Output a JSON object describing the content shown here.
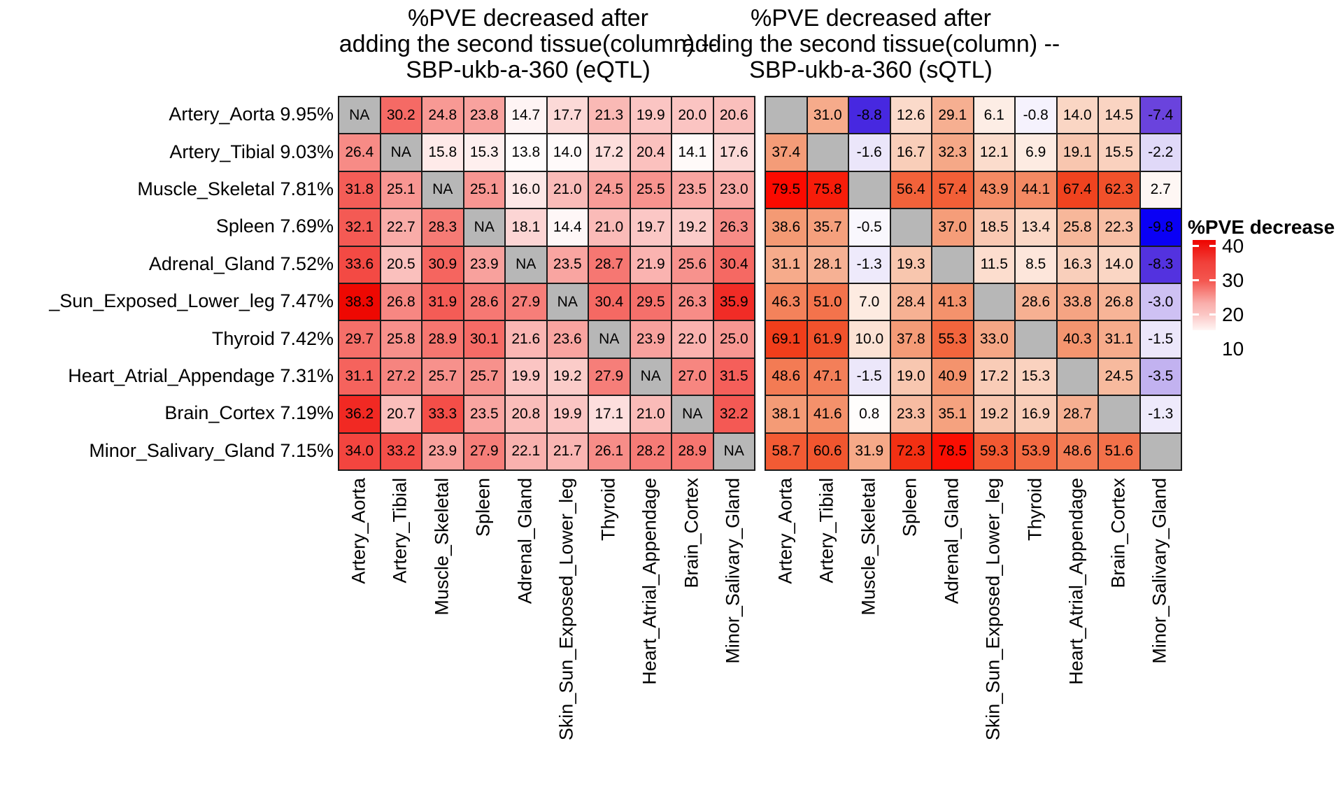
{
  "figure": {
    "legend": {
      "title": "%PVE decrease",
      "ticks": [
        "40",
        "30",
        "20",
        "10"
      ]
    }
  },
  "colors": {
    "na_fill": "#b7b7b7",
    "cell_border": "#1a1a1a",
    "cell_text": "#000000",
    "label_text": "#000000",
    "legend_tick_dash": "#ffffff",
    "legend_top_red": "#ee0400",
    "negative_blue": "#0a00f5"
  },
  "chart_data": [
    {
      "type": "heatmap",
      "name": "eQTL",
      "title": "%PVE decreased after\nadding the second tissue(column) --\nSBP-ukb-a-360 (eQTL)",
      "na_label": "NA",
      "rows": [
        {
          "tissue": "Artery_Aorta",
          "pve": "9.95%"
        },
        {
          "tissue": "Artery_Tibial",
          "pve": "9.03%"
        },
        {
          "tissue": "Muscle_Skeletal",
          "pve": "7.81%"
        },
        {
          "tissue": "Spleen",
          "pve": "7.69%"
        },
        {
          "tissue": "Adrenal_Gland",
          "pve": "7.52%"
        },
        {
          "tissue": "_Sun_Exposed_Lower_leg",
          "pve": "7.47%"
        },
        {
          "tissue": "Thyroid",
          "pve": "7.42%"
        },
        {
          "tissue": "Heart_Atrial_Appendage",
          "pve": "7.31%"
        },
        {
          "tissue": "Brain_Cortex",
          "pve": "7.19%"
        },
        {
          "tissue": "Minor_Salivary_Gland",
          "pve": "7.15%"
        }
      ],
      "columns": [
        "Artery_Aorta",
        "Artery_Tibial",
        "Muscle_Skeletal",
        "Spleen",
        "Adrenal_Gland",
        "Skin_Sun_Exposed_Lower_leg",
        "Thyroid",
        "Heart_Atrial_Appendage",
        "Brain_Cortex",
        "Minor_Salivary_Gland"
      ],
      "values": [
        [
          null,
          30.2,
          24.8,
          23.8,
          14.7,
          17.7,
          21.3,
          19.9,
          20.0,
          20.6
        ],
        [
          26.4,
          null,
          15.8,
          15.3,
          13.8,
          14.0,
          17.2,
          20.4,
          14.1,
          17.6
        ],
        [
          31.8,
          25.1,
          null,
          25.1,
          16.0,
          21.0,
          24.5,
          25.5,
          23.5,
          23.0
        ],
        [
          32.1,
          22.7,
          28.3,
          null,
          18.1,
          14.4,
          21.0,
          19.7,
          19.2,
          26.3
        ],
        [
          33.6,
          20.5,
          30.9,
          23.9,
          null,
          23.5,
          28.7,
          21.9,
          25.6,
          30.4
        ],
        [
          38.3,
          26.8,
          31.9,
          28.6,
          27.9,
          null,
          30.4,
          29.5,
          26.3,
          35.9
        ],
        [
          29.7,
          25.8,
          28.9,
          30.1,
          21.6,
          23.6,
          null,
          23.9,
          22.0,
          25.0
        ],
        [
          31.1,
          27.2,
          25.7,
          25.7,
          19.9,
          19.2,
          27.9,
          null,
          27.0,
          31.5
        ],
        [
          36.2,
          20.7,
          33.3,
          23.5,
          20.8,
          19.9,
          17.1,
          21.0,
          null,
          32.2
        ],
        [
          34.0,
          33.2,
          23.9,
          27.9,
          22.1,
          21.7,
          26.1,
          28.2,
          28.9,
          null
        ]
      ],
      "scale": {
        "positive": {
          "domain": [
            13.5,
            38.3
          ],
          "stops": [
            [
              0,
              [
                255,
                255,
                255
              ]
            ],
            [
              0.5,
              [
                247,
                143,
                138
              ]
            ],
            [
              0.78,
              [
                244,
                84,
                78
              ]
            ],
            [
              0.92,
              [
                241,
                39,
                33
              ]
            ],
            [
              1,
              [
                238,
                8,
                2
              ]
            ]
          ]
        },
        "negative": {
          "domain": [
            0,
            9.8
          ],
          "stops": [
            [
              0,
              [
                255,
                255,
                255
              ]
            ],
            [
              0.2,
              [
                230,
                224,
                249
              ]
            ],
            [
              0.35,
              [
                196,
                180,
                240
              ]
            ],
            [
              0.55,
              [
                150,
                120,
                232
              ]
            ],
            [
              0.75,
              [
                107,
                68,
                221
              ]
            ],
            [
              0.9,
              [
                70,
                40,
                224
              ]
            ],
            [
              1,
              [
                10,
                0,
                245
              ]
            ]
          ]
        }
      }
    },
    {
      "type": "heatmap",
      "name": "sQTL",
      "title": "%PVE decreased after\nadding the second tissue(column) --\nSBP-ukb-a-360 (sQTL)",
      "na_label": "",
      "rows": [
        {
          "tissue": "Artery_Aorta",
          "pve": "9.95%"
        },
        {
          "tissue": "Artery_Tibial",
          "pve": "9.03%"
        },
        {
          "tissue": "Muscle_Skeletal",
          "pve": "7.81%"
        },
        {
          "tissue": "Spleen",
          "pve": "7.69%"
        },
        {
          "tissue": "Adrenal_Gland",
          "pve": "7.52%"
        },
        {
          "tissue": "_Sun_Exposed_Lower_leg",
          "pve": "7.47%"
        },
        {
          "tissue": "Thyroid",
          "pve": "7.42%"
        },
        {
          "tissue": "Heart_Atrial_Appendage",
          "pve": "7.31%"
        },
        {
          "tissue": "Brain_Cortex",
          "pve": "7.19%"
        },
        {
          "tissue": "Minor_Salivary_Gland",
          "pve": "7.15%"
        }
      ],
      "columns": [
        "Artery_Aorta",
        "Artery_Tibial",
        "Muscle_Skeletal",
        "Spleen",
        "Adrenal_Gland",
        "Skin_Sun_Exposed_Lower_leg",
        "Thyroid",
        "Heart_Atrial_Appendage",
        "Brain_Cortex",
        "Minor_Salivary_Gland"
      ],
      "values": [
        [
          null,
          31.0,
          -8.8,
          12.6,
          29.1,
          6.1,
          -0.8,
          14.0,
          14.5,
          -7.4
        ],
        [
          37.4,
          null,
          -1.6,
          16.7,
          32.3,
          12.1,
          6.9,
          19.1,
          15.5,
          -2.2
        ],
        [
          79.5,
          75.8,
          null,
          56.4,
          57.4,
          43.9,
          44.1,
          67.4,
          62.3,
          2.7
        ],
        [
          38.6,
          35.7,
          -0.5,
          null,
          37.0,
          18.5,
          13.4,
          25.8,
          22.3,
          -9.8
        ],
        [
          31.1,
          28.1,
          -1.3,
          19.3,
          null,
          11.5,
          8.5,
          16.3,
          14.0,
          -8.3
        ],
        [
          46.3,
          51.0,
          7.0,
          28.4,
          41.3,
          null,
          28.6,
          33.8,
          26.8,
          -3.0
        ],
        [
          69.1,
          61.9,
          10.0,
          37.8,
          55.3,
          33.0,
          null,
          40.3,
          31.1,
          -1.5
        ],
        [
          48.6,
          47.1,
          -1.5,
          19.0,
          40.9,
          17.2,
          15.3,
          null,
          24.5,
          -3.5
        ],
        [
          38.1,
          41.6,
          0.8,
          23.3,
          35.1,
          19.2,
          16.9,
          28.7,
          null,
          -1.3
        ],
        [
          58.7,
          60.6,
          31.9,
          72.3,
          78.5,
          59.3,
          53.9,
          48.6,
          51.6,
          null
        ]
      ],
      "scale": {
        "positive": {
          "domain": [
            0,
            79.5
          ],
          "stops": [
            [
              0,
              [
                255,
                255,
                255
              ]
            ],
            [
              0.13,
              [
                252,
                225,
                211
              ]
            ],
            [
              0.25,
              [
                248,
                196,
                172
              ]
            ],
            [
              0.5,
              [
                244,
                151,
                113
              ]
            ],
            [
              0.72,
              [
                242,
                95,
                55
              ]
            ],
            [
              0.88,
              [
                240,
                60,
                25
              ]
            ],
            [
              1,
              [
                251,
                10,
                0
              ]
            ]
          ]
        },
        "negative": {
          "domain": [
            0,
            9.8
          ],
          "stops": [
            [
              0,
              [
                255,
                255,
                255
              ]
            ],
            [
              0.2,
              [
                230,
                224,
                249
              ]
            ],
            [
              0.35,
              [
                196,
                180,
                240
              ]
            ],
            [
              0.55,
              [
                150,
                120,
                232
              ]
            ],
            [
              0.75,
              [
                107,
                68,
                221
              ]
            ],
            [
              0.9,
              [
                70,
                40,
                224
              ]
            ],
            [
              1,
              [
                10,
                0,
                245
              ]
            ]
          ]
        }
      }
    }
  ]
}
